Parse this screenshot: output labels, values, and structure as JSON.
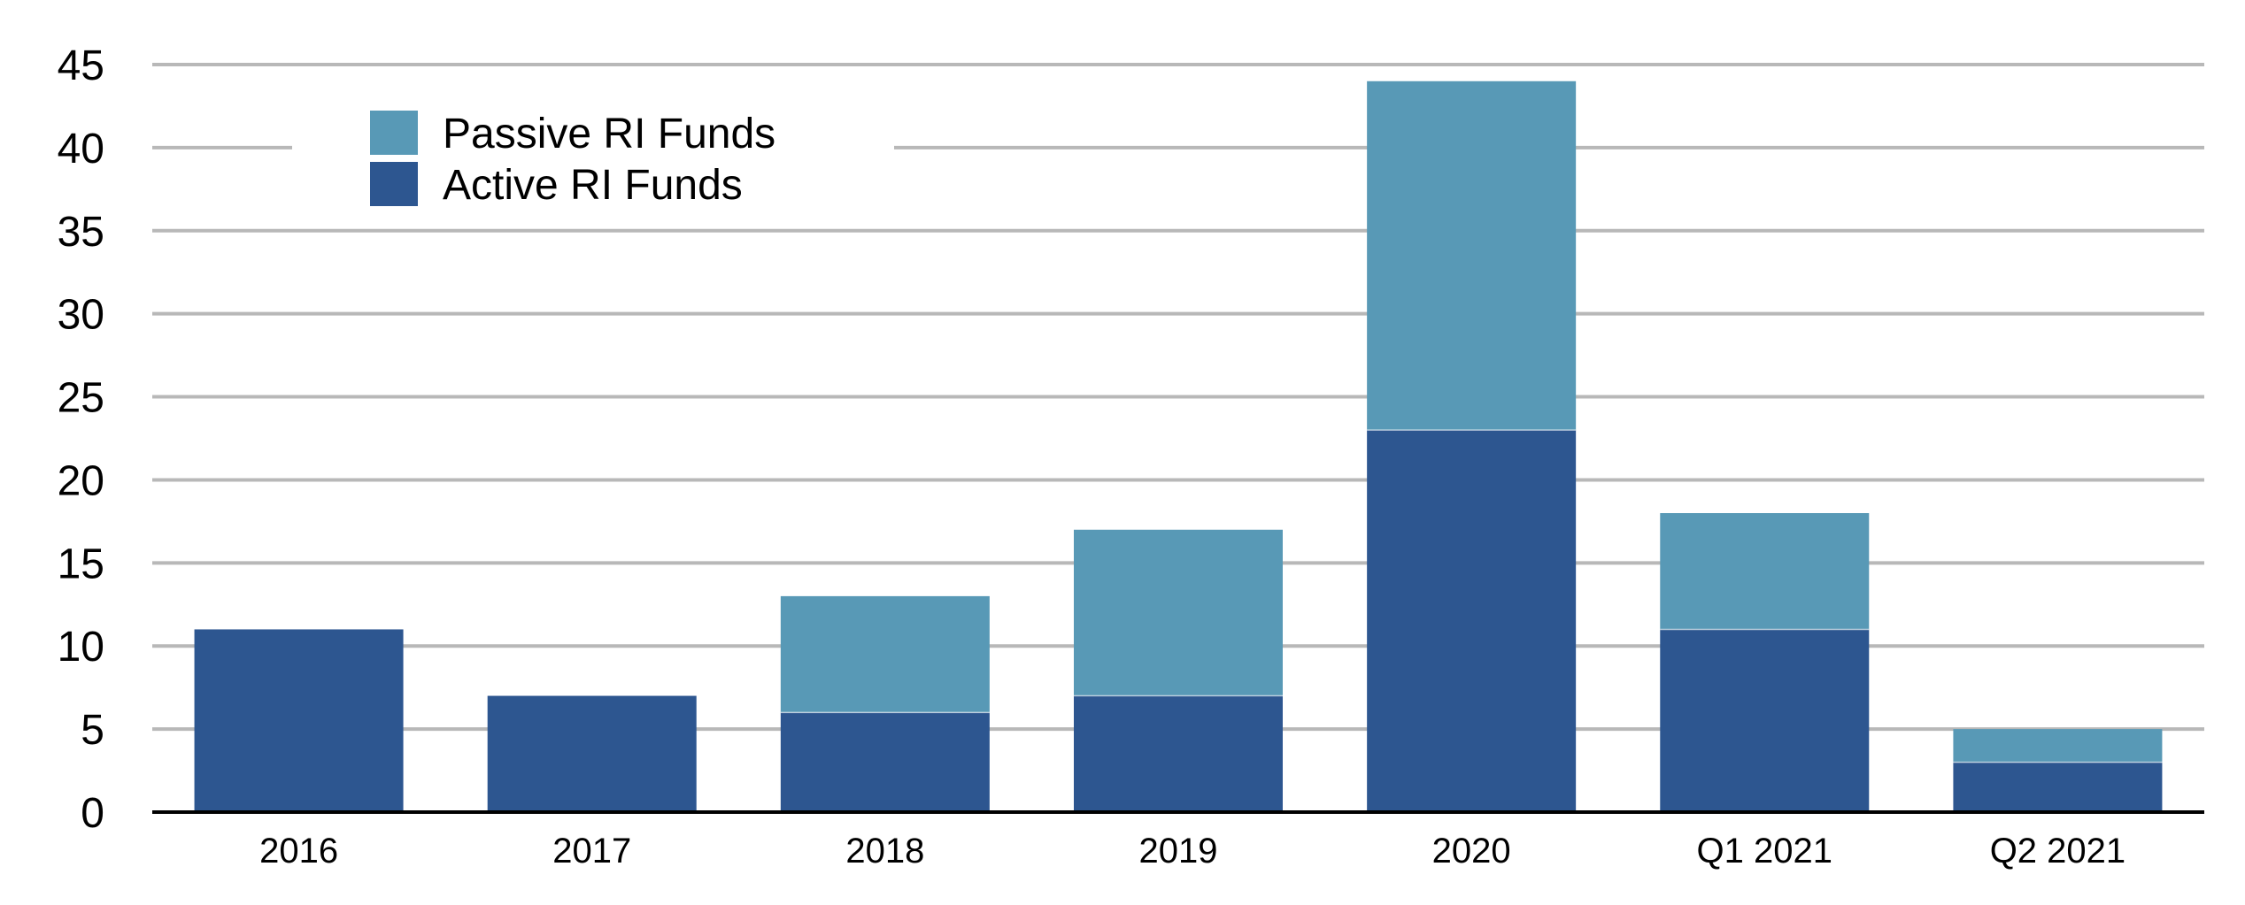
{
  "chart_data": {
    "type": "bar",
    "stacked": true,
    "title": "",
    "xlabel": "",
    "ylabel": "",
    "categories": [
      "2016",
      "2017",
      "2018",
      "2019",
      "2020",
      "Q1 2021",
      "Q2 2021"
    ],
    "series": [
      {
        "name": "Active RI Funds",
        "color": "#2d5690",
        "values": [
          11,
          7,
          6,
          7,
          23,
          11,
          3
        ]
      },
      {
        "name": "Passive RI Funds",
        "color": "#5899b6",
        "values": [
          0,
          0,
          7,
          10,
          21,
          7,
          2
        ]
      }
    ],
    "ylim": [
      0,
      45
    ],
    "yticks": [
      0,
      5,
      10,
      15,
      20,
      25,
      30,
      35,
      40,
      45
    ],
    "grid": true,
    "legend": {
      "placement": "top-left",
      "entries": [
        {
          "label": "Passive RI Funds",
          "color": "#5899b6"
        },
        {
          "label": "Active RI Funds",
          "color": "#2d5690"
        }
      ]
    }
  }
}
